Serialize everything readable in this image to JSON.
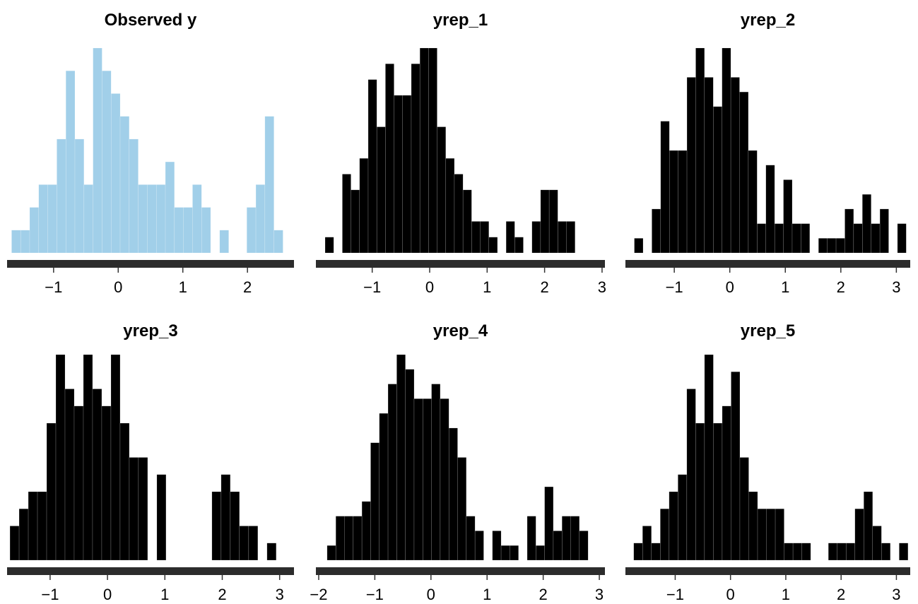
{
  "chart_data": [
    {
      "type": "bar",
      "title": "Observed y",
      "xlim": [
        -1.72,
        2.72
      ],
      "xticks": [
        -1,
        0,
        1,
        2
      ],
      "xtick_labels": [
        "−1",
        "0",
        "1",
        "2"
      ],
      "bin_width": 0.14,
      "bins_start": -1.65,
      "counts": [
        1,
        1,
        2,
        3,
        3,
        5,
        8,
        5,
        3,
        9,
        8,
        7,
        6,
        5,
        3,
        3,
        3,
        4,
        2,
        2,
        3,
        2,
        0,
        1,
        0,
        0,
        2,
        3,
        6,
        1
      ],
      "color": "#a1cfe9",
      "axis_color": "#2c2c2c"
    },
    {
      "type": "bar",
      "title": "yrep_1",
      "xlim": [
        -1.98,
        3.05
      ],
      "xticks": [
        -1,
        0,
        1,
        2,
        3
      ],
      "xtick_labels": [
        "−1",
        "0",
        "1",
        "2",
        "3"
      ],
      "bin_width": 0.15,
      "bins_start": -1.82,
      "counts": [
        1,
        0,
        5,
        4,
        6,
        11,
        8,
        12,
        10,
        10,
        12,
        13,
        13,
        8,
        6,
        5,
        4,
        2,
        2,
        1,
        0,
        2,
        1,
        0,
        2,
        4,
        4,
        2,
        2
      ],
      "color": "#000000",
      "axis_color": "#2c2c2c"
    },
    {
      "type": "bar",
      "title": "yrep_2",
      "xlim": [
        -1.88,
        3.25
      ],
      "xticks": [
        -1,
        0,
        1,
        2,
        3
      ],
      "xtick_labels": [
        "−1",
        "0",
        "1",
        "2",
        "3"
      ],
      "bin_width": 0.158,
      "bins_start": -1.72,
      "counts": [
        1,
        0,
        3,
        9,
        7,
        7,
        12,
        14,
        12,
        10,
        14,
        12,
        11,
        7,
        2,
        6,
        2,
        5,
        2,
        2,
        0,
        1,
        1,
        1,
        3,
        2,
        4,
        2,
        3,
        0,
        2
      ],
      "color": "#000000",
      "axis_color": "#2c2c2c"
    },
    {
      "type": "bar",
      "title": "yrep_3",
      "xlim": [
        -1.75,
        3.25
      ],
      "xticks": [
        -1,
        0,
        1,
        2,
        3
      ],
      "xtick_labels": [
        "−1",
        "0",
        "1",
        "2",
        "3"
      ],
      "bin_width": 0.16,
      "bins_start": -1.7,
      "counts": [
        2,
        3,
        4,
        4,
        8,
        12,
        10,
        9,
        12,
        10,
        9,
        12,
        8,
        6,
        6,
        0,
        5,
        0,
        0,
        0,
        0,
        0,
        4,
        5,
        4,
        2,
        2,
        0,
        1
      ],
      "color": "#000000",
      "axis_color": "#2c2c2c"
    },
    {
      "type": "bar",
      "title": "yrep_4",
      "xlim": [
        -2.05,
        3.1
      ],
      "xticks": [
        -2,
        -1,
        0,
        1,
        2,
        3
      ],
      "xtick_labels": [
        "−2",
        "0",
        "1",
        "2",
        "3"
      ],
      "xtick_labels_full": [
        "−2",
        "−1",
        "0",
        "1",
        "2",
        "3"
      ],
      "bin_width": 0.155,
      "bins_start": -1.85,
      "counts": [
        1,
        3,
        3,
        3,
        4,
        8,
        10,
        12,
        14,
        13,
        11,
        11,
        12,
        11,
        9,
        7,
        3,
        2,
        0,
        2,
        1,
        1,
        0,
        3,
        1,
        5,
        2,
        3,
        3,
        2
      ],
      "color": "#000000",
      "axis_color": "#2c2c2c"
    },
    {
      "type": "bar",
      "title": "yrep_5",
      "xlim": [
        -1.9,
        3.25
      ],
      "xticks": [
        -1,
        0,
        1,
        2,
        3
      ],
      "xtick_labels": [
        "−1",
        "0",
        "1",
        "2",
        "3"
      ],
      "bin_width": 0.16,
      "bins_start": -1.75,
      "counts": [
        1,
        2,
        1,
        3,
        4,
        5,
        10,
        8,
        12,
        8,
        9,
        11,
        6,
        4,
        3,
        3,
        3,
        1,
        1,
        1,
        0,
        0,
        1,
        1,
        1,
        3,
        4,
        2,
        1,
        0,
        1
      ],
      "color": "#000000",
      "axis_color": "#2c2c2c"
    }
  ]
}
